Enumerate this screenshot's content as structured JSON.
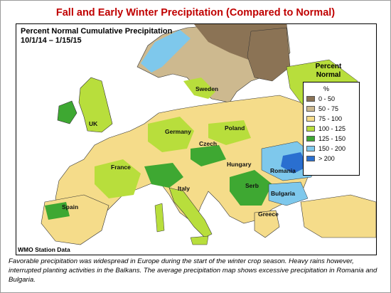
{
  "title": "Fall and Early Winter Precipitation (Compared to Normal)",
  "map": {
    "subtitle_line1": "Percent Normal Cumulative Precipitation",
    "subtitle_line2": "10/1/14 – 1/15/15",
    "source": "WMO Station Data",
    "countries": [
      "Sweden",
      "UK",
      "Germany",
      "Poland",
      "France",
      "Czech",
      "Hungary",
      "Romania",
      "Italy",
      "Serb",
      "Bulgaria",
      "Spain",
      "Greece"
    ]
  },
  "legend": {
    "title_line1": "Percent",
    "title_line2": "Normal",
    "unit": "%",
    "items": [
      {
        "label": "0 - 50",
        "color": "#8b7355"
      },
      {
        "label": "50 - 75",
        "color": "#cdb98f"
      },
      {
        "label": "75 - 100",
        "color": "#f5dc8a"
      },
      {
        "label": "100 - 125",
        "color": "#b8de3c"
      },
      {
        "label": "125 - 150",
        "color": "#3ea832"
      },
      {
        "label": "150 - 200",
        "color": "#7ec8ec"
      },
      {
        "label": "> 200",
        "color": "#2a6fd0"
      }
    ]
  },
  "caption": "Favorable precipitation was widespread in Europe during the start of the winter crop season.  Heavy rains however, interrupted planting activities in the Balkans.  The average precipitation map shows excessive precipitation in Romania and Bulgaria."
}
